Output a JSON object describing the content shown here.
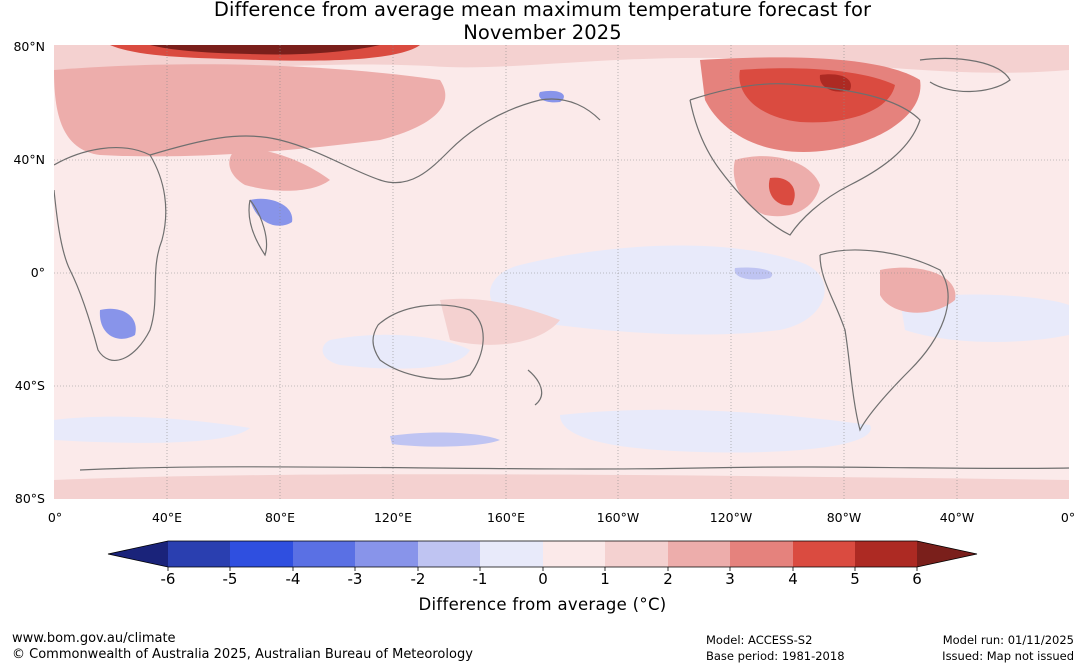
{
  "title": {
    "line1": "Difference from average mean maximum temperature forecast for",
    "line2": "November 2025"
  },
  "map": {
    "latitude_labels": [
      "80°N",
      "40°N",
      "0°",
      "40°S",
      "80°S"
    ],
    "longitude_labels": [
      "0°",
      "40°E",
      "80°E",
      "120°E",
      "160°E",
      "160°W",
      "120°W",
      "80°W",
      "40°W",
      "0°"
    ],
    "colors": {
      "ocean_base": "#fbeaea",
      "coastline": "#6f6f6f",
      "grid": "#8a8a8a"
    }
  },
  "colorbar": {
    "tick_labels": [
      "-6",
      "-5",
      "-4",
      "-3",
      "-2",
      "-1",
      "0",
      "1",
      "2",
      "3",
      "4",
      "5",
      "6"
    ],
    "colors": {
      "extend_low": "#1a237a",
      "bin_m6_m5": "#2a3fb0",
      "bin_m5_m4": "#2f4fe0",
      "bin_m4_m3": "#5a70e4",
      "bin_m3_m2": "#8894ea",
      "bin_m2_m1": "#bfc4f2",
      "bin_m1_0": "#e8eafa",
      "bin_0_1": "#fbe9e9",
      "bin_1_2": "#f4d1d0",
      "bin_2_3": "#edadab",
      "bin_3_4": "#e5827d",
      "bin_4_5": "#da4b40",
      "bin_5_6": "#ad2a23",
      "extend_high": "#7a1f1b"
    },
    "label": "Difference from average (°C)"
  },
  "footer": {
    "website": "www.bom.gov.au/climate",
    "copyright": "© Commonwealth of Australia 2025, Australian Bureau of Meteorology",
    "model": "Model: ACCESS-S2",
    "base_period": "Base period: 1981-2018",
    "model_run": "Model run: 01/11/2025",
    "issued": "Issued: Map not issued"
  }
}
